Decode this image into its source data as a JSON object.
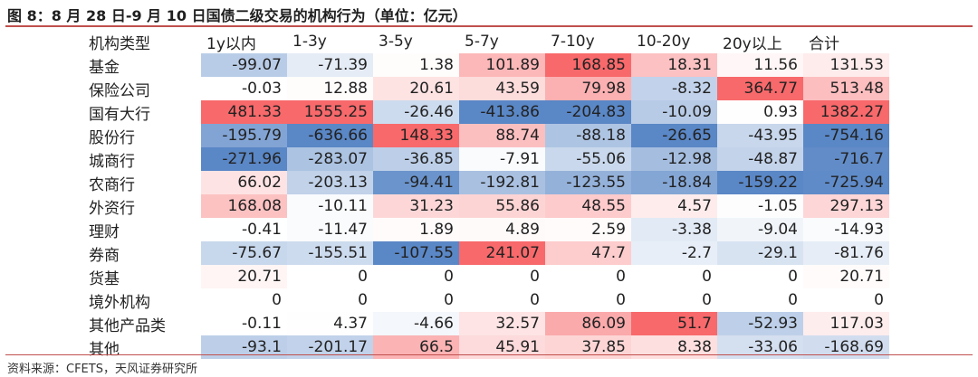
{
  "title": "图 8：8 月 28 日-9 月 10 日国债二级交易的机构行为（单位：亿元）",
  "source": "资料来源：CFETS，天风证券研究所",
  "colors": {
    "rule": "#c0504d",
    "scale_neg": "#5a87c6",
    "scale_mid": "#ffffff",
    "scale_pos": "#f8696b"
  },
  "table": {
    "headers": [
      "机构类型",
      "1y以内",
      "1-3y",
      "3-5y",
      "5-7y",
      "7-10y",
      "10-20y",
      "20y以上",
      "合计"
    ],
    "rows": [
      {
        "label": "基金",
        "values": [
          "-99.07",
          "-71.39",
          "1.38",
          "101.89",
          "168.85",
          "18.31",
          "11.56",
          "131.53"
        ]
      },
      {
        "label": "保险公司",
        "values": [
          "-0.03",
          "12.88",
          "20.61",
          "43.59",
          "79.98",
          "-8.32",
          "364.77",
          "513.48"
        ]
      },
      {
        "label": "国有大行",
        "values": [
          "481.33",
          "1555.25",
          "-26.46",
          "-413.86",
          "-204.83",
          "-10.09",
          "0.93",
          "1382.27"
        ]
      },
      {
        "label": "股份行",
        "values": [
          "-195.79",
          "-636.66",
          "148.33",
          "88.74",
          "-88.18",
          "-26.65",
          "-43.95",
          "-754.16"
        ]
      },
      {
        "label": "城商行",
        "values": [
          "-271.96",
          "-283.07",
          "-36.85",
          "-7.91",
          "-55.06",
          "-12.98",
          "-48.87",
          "-716.7"
        ]
      },
      {
        "label": "农商行",
        "values": [
          "66.02",
          "-203.13",
          "-94.41",
          "-192.81",
          "-123.55",
          "-18.84",
          "-159.22",
          "-725.94"
        ]
      },
      {
        "label": "外资行",
        "values": [
          "168.08",
          "-10.11",
          "31.23",
          "55.86",
          "48.55",
          "4.57",
          "-1.05",
          "297.13"
        ]
      },
      {
        "label": "理财",
        "values": [
          "-0.41",
          "-11.47",
          "1.89",
          "4.89",
          "2.59",
          "-3.38",
          "-9.04",
          "-14.93"
        ]
      },
      {
        "label": "券商",
        "values": [
          "-75.67",
          "-155.51",
          "-107.55",
          "241.07",
          "47.7",
          "-2.7",
          "-29.1",
          "-81.76"
        ]
      },
      {
        "label": "货基",
        "values": [
          "20.71",
          "0",
          "0",
          "0",
          "0",
          "0",
          "0",
          "20.71"
        ]
      },
      {
        "label": "境外机构",
        "values": [
          "0",
          "0",
          "0",
          "0",
          "0",
          "0",
          "0",
          "0"
        ]
      },
      {
        "label": "其他产品类",
        "values": [
          "-0.11",
          "4.37",
          "-4.66",
          "32.57",
          "86.09",
          "51.7",
          "-52.93",
          "117.03"
        ]
      },
      {
        "label": "其他",
        "values": [
          "-93.1",
          "-201.17",
          "66.5",
          "45.91",
          "37.85",
          "8.38",
          "-33.06",
          "-168.69"
        ]
      }
    ]
  }
}
